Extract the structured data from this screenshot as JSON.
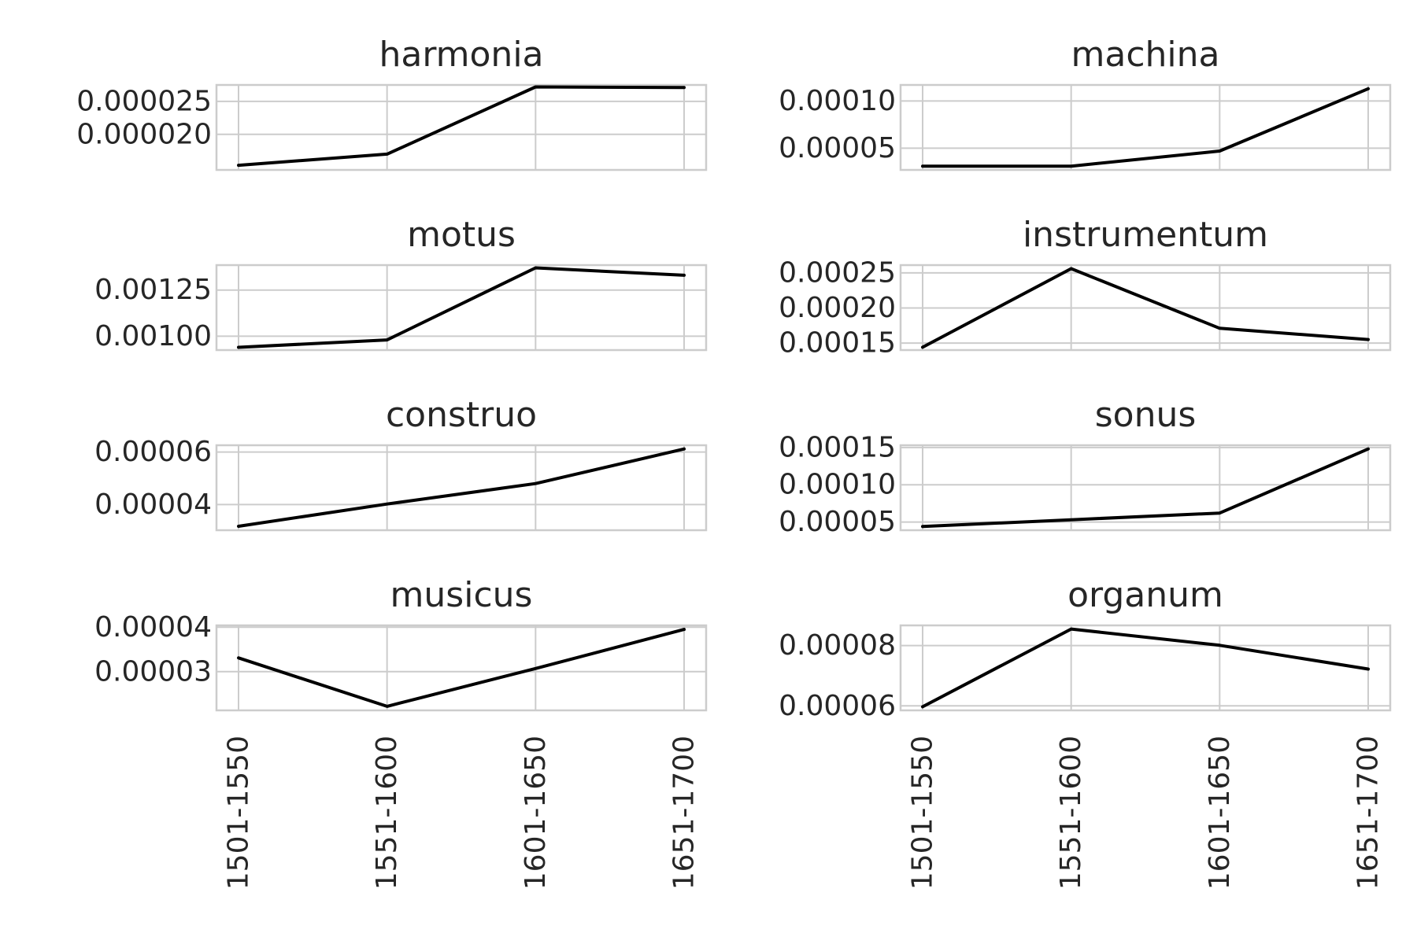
{
  "chart_data": [
    {
      "type": "line",
      "title": "harmonia",
      "x": [
        "1501-1550",
        "1551-1600",
        "1601-1650",
        "1651-1700"
      ],
      "series": [
        {
          "values": [
            1.53e-05,
            1.7e-05,
            2.72e-05,
            2.71e-05
          ]
        }
      ],
      "ylim": [
        1.46e-05,
        2.75e-05
      ],
      "yticks": [
        2e-05,
        2.5e-05
      ],
      "yticklabels": [
        "0.000020",
        "0.000025"
      ],
      "grid": true
    },
    {
      "type": "line",
      "title": "machina",
      "x": [
        "1501-1550",
        "1551-1600",
        "1601-1650",
        "1651-1700"
      ],
      "series": [
        {
          "values": [
            3.1e-05,
            3.1e-05,
            4.7e-05,
            0.000113
          ]
        }
      ],
      "ylim": [
        2.7e-05,
        0.000117
      ],
      "yticks": [
        5e-05,
        0.0001
      ],
      "yticklabels": [
        "0.00005",
        "0.00010"
      ],
      "grid": true
    },
    {
      "type": "line",
      "title": "motus",
      "x": [
        "1501-1550",
        "1551-1600",
        "1601-1650",
        "1651-1700"
      ],
      "series": [
        {
          "values": [
            0.00094,
            0.00098,
            0.00137,
            0.00133
          ]
        }
      ],
      "ylim": [
        0.000925,
        0.001385
      ],
      "yticks": [
        0.001,
        0.00125
      ],
      "yticklabels": [
        "0.00100",
        "0.00125"
      ],
      "grid": true
    },
    {
      "type": "line",
      "title": "instrumentum",
      "x": [
        "1501-1550",
        "1551-1600",
        "1601-1650",
        "1651-1700"
      ],
      "series": [
        {
          "values": [
            0.000144,
            0.000256,
            0.000171,
            0.000155
          ]
        }
      ],
      "ylim": [
        0.00014,
        0.000261
      ],
      "yticks": [
        0.00015,
        0.0002,
        0.00025
      ],
      "yticklabels": [
        "0.00015",
        "0.00020",
        "0.00025"
      ],
      "grid": true
    },
    {
      "type": "line",
      "title": "construo",
      "x": [
        "1501-1550",
        "1551-1600",
        "1601-1650",
        "1651-1700"
      ],
      "series": [
        {
          "values": [
            3.17e-05,
            4.02e-05,
            4.8e-05,
            6.12e-05
          ]
        }
      ],
      "ylim": [
        3.02e-05,
        6.26e-05
      ],
      "yticks": [
        4e-05,
        6e-05
      ],
      "yticklabels": [
        "0.00004",
        "0.00006"
      ],
      "grid": true
    },
    {
      "type": "line",
      "title": "sonus",
      "x": [
        "1501-1550",
        "1551-1600",
        "1601-1650",
        "1651-1700"
      ],
      "series": [
        {
          "values": [
            4.4e-05,
            5.3e-05,
            6.2e-05,
            0.000148
          ]
        }
      ],
      "ylim": [
        3.9e-05,
        0.000153
      ],
      "yticks": [
        5e-05,
        0.0001,
        0.00015
      ],
      "yticklabels": [
        "0.00005",
        "0.00010",
        "0.00015"
      ],
      "grid": true
    },
    {
      "type": "line",
      "title": "musicus",
      "x": [
        "1501-1550",
        "1551-1600",
        "1601-1650",
        "1651-1700"
      ],
      "series": [
        {
          "values": [
            3.31e-05,
            2.22e-05,
            3.07e-05,
            3.95e-05
          ]
        }
      ],
      "ylim": [
        2.13e-05,
        4.04e-05
      ],
      "yticks": [
        3e-05,
        4e-05
      ],
      "yticklabels": [
        "0.00003",
        "0.00004"
      ],
      "grid": true
    },
    {
      "type": "line",
      "title": "organum",
      "x": [
        "1501-1550",
        "1551-1600",
        "1601-1650",
        "1651-1700"
      ],
      "series": [
        {
          "values": [
            5.97e-05,
            8.55e-05,
            8.01e-05,
            7.22e-05
          ]
        }
      ],
      "ylim": [
        5.85e-05,
        8.67e-05
      ],
      "yticks": [
        6e-05,
        8e-05
      ],
      "yticklabels": [
        "0.00006",
        "0.00008"
      ],
      "grid": true
    }
  ]
}
